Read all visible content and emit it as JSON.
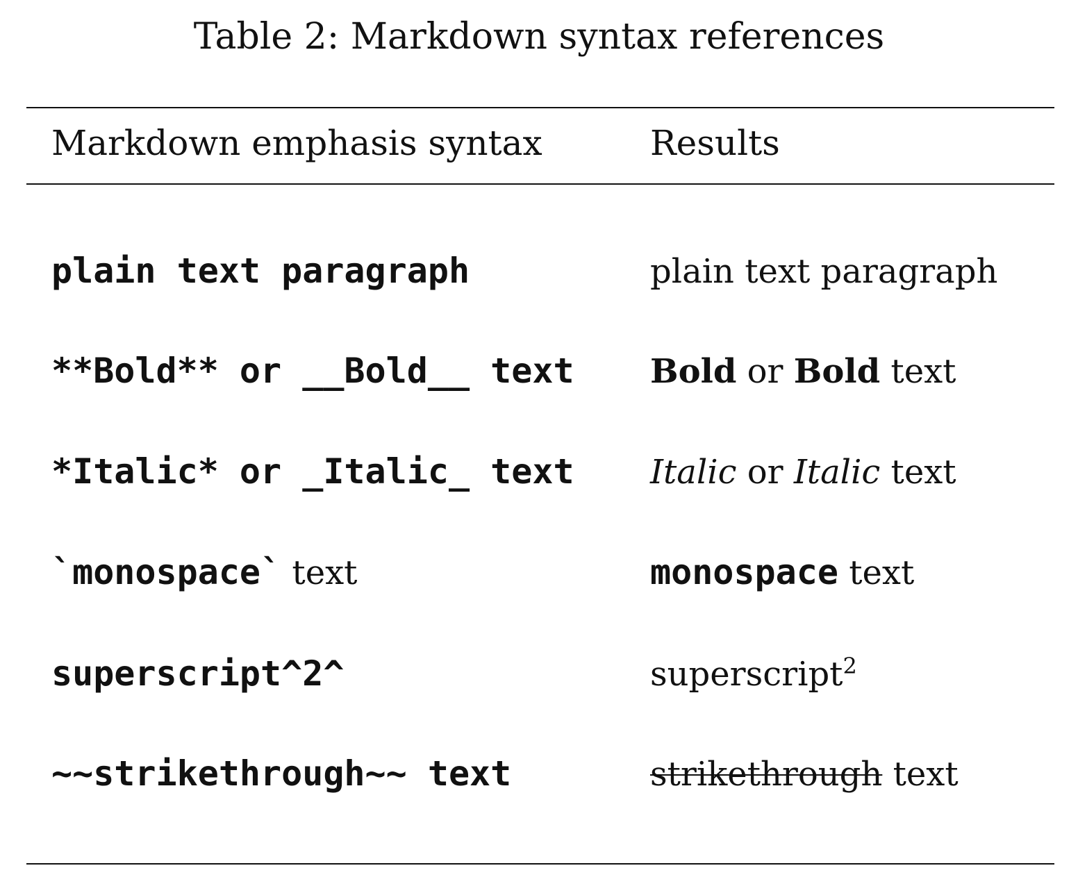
{
  "caption": "Table 2: Markdown syntax references",
  "headers": {
    "syntax": "Markdown emphasis syntax",
    "results": "Results"
  },
  "rows": [
    {
      "syntax_a": "plain text paragraph",
      "result_a": "plain text paragraph"
    },
    {
      "syntax_a": "**Bold** or __Bold__ text",
      "result_bold_1": "Bold",
      "result_mid": " or ",
      "result_bold_2": "Bold",
      "result_tail": " text"
    },
    {
      "syntax_a": "*Italic* or _Italic_ text",
      "result_italic_1": "Italic",
      "result_mid": " or ",
      "result_italic_2": "Italic",
      "result_tail": " text"
    },
    {
      "syntax_mono": "`monospace`",
      "syntax_tail": " text",
      "result_mono": "monospace",
      "result_tail": " text"
    },
    {
      "syntax_a": "superscript^2^",
      "result_base": "superscript",
      "result_sup": "2"
    },
    {
      "syntax_a": "~~strikethrough~~ text",
      "result_strike": "strikethrough",
      "result_tail": " text"
    }
  ]
}
